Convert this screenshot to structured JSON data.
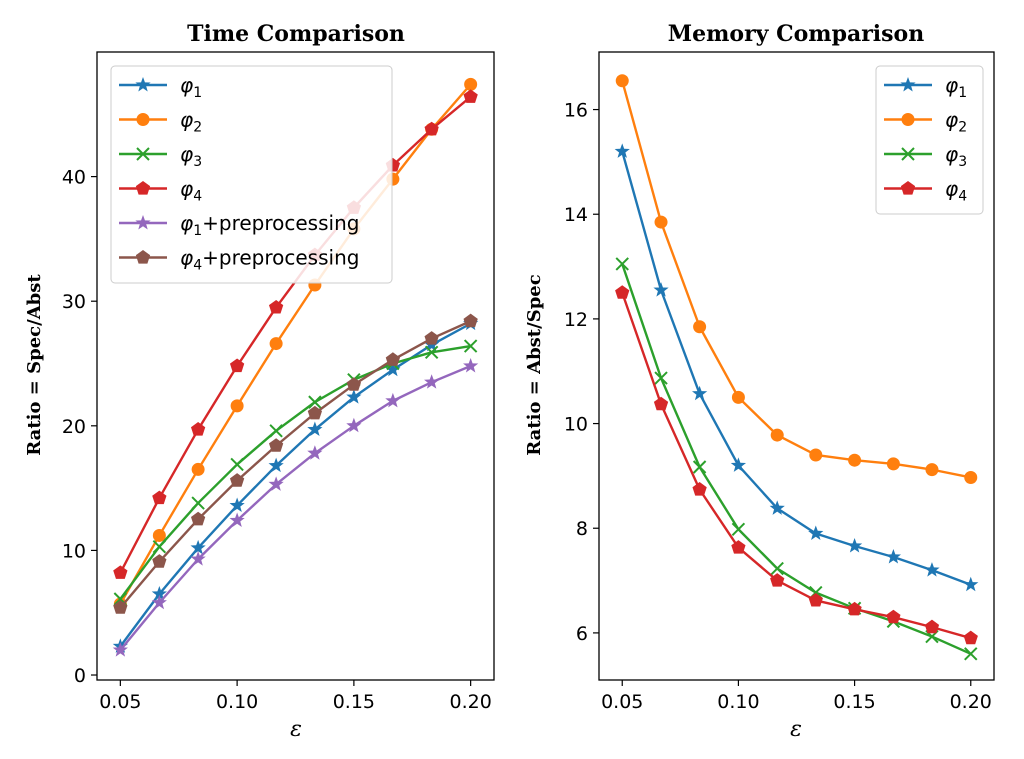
{
  "chart_data": [
    {
      "type": "line",
      "title": "Time Comparison",
      "xlabel": "ε",
      "ylabel": "Ratio = Spec/Abst",
      "xlim": [
        0.04,
        0.21
      ],
      "ylim": [
        -0.4,
        50
      ],
      "xticks": [
        "0.05",
        "0.10",
        "0.15",
        "0.20"
      ],
      "yticks": [
        "0",
        "10",
        "20",
        "30",
        "40"
      ],
      "legend_position": "upper-left",
      "x": [
        0.05,
        0.0667,
        0.0833,
        0.1,
        0.1167,
        0.1333,
        0.15,
        0.1667,
        0.1833,
        0.2
      ],
      "series": [
        {
          "name": "φ1",
          "sym": "φ",
          "sub": "1",
          "suffix": "",
          "color": "#1f77b4",
          "marker": "star",
          "values": [
            2.3,
            6.5,
            10.2,
            13.6,
            16.8,
            19.7,
            22.3,
            24.5,
            26.5,
            28.2
          ]
        },
        {
          "name": "φ2",
          "sym": "φ",
          "sub": "2",
          "suffix": "",
          "color": "#ff7f0e",
          "marker": "circle",
          "values": [
            5.7,
            11.2,
            16.5,
            21.6,
            26.6,
            31.3,
            35.8,
            39.8,
            43.8,
            47.4
          ]
        },
        {
          "name": "φ3",
          "sym": "φ",
          "sub": "3",
          "suffix": "",
          "color": "#2ca02c",
          "marker": "x",
          "values": [
            6.1,
            10.3,
            13.8,
            16.9,
            19.6,
            21.9,
            23.7,
            25.0,
            25.9,
            26.4
          ]
        },
        {
          "name": "φ4",
          "sym": "φ",
          "sub": "4",
          "suffix": "",
          "color": "#d62728",
          "marker": "pentagon",
          "values": [
            8.2,
            14.2,
            19.7,
            24.8,
            29.5,
            33.7,
            37.5,
            40.9,
            43.8,
            46.4
          ]
        },
        {
          "name": "φ1+preprocessing",
          "sym": "φ",
          "sub": "1",
          "suffix": "+preprocessing",
          "color": "#9467bd",
          "marker": "star",
          "values": [
            2.0,
            5.8,
            9.3,
            12.4,
            15.3,
            17.8,
            20.0,
            22.0,
            23.5,
            24.8
          ]
        },
        {
          "name": "φ4+preprocessing",
          "sym": "φ",
          "sub": "4",
          "suffix": "+preprocessing",
          "color": "#8c564b",
          "marker": "pentagon",
          "values": [
            5.4,
            9.1,
            12.5,
            15.6,
            18.4,
            21.0,
            23.3,
            25.3,
            27.0,
            28.4
          ]
        }
      ]
    },
    {
      "type": "line",
      "title": "Memory Comparison",
      "xlabel": "ε",
      "ylabel": "Ratio = Abst/Spec",
      "xlim": [
        0.04,
        0.21
      ],
      "ylim": [
        5.1,
        17.1
      ],
      "xticks": [
        "0.05",
        "0.10",
        "0.15",
        "0.20"
      ],
      "yticks": [
        "6",
        "8",
        "10",
        "12",
        "14",
        "16"
      ],
      "legend_position": "upper-right",
      "x": [
        0.05,
        0.0667,
        0.0833,
        0.1,
        0.1167,
        0.1333,
        0.15,
        0.1667,
        0.1833,
        0.2
      ],
      "series": [
        {
          "name": "φ1",
          "sym": "φ",
          "sub": "1",
          "suffix": "",
          "color": "#1f77b4",
          "marker": "star",
          "values": [
            15.2,
            12.55,
            10.57,
            9.2,
            8.38,
            7.9,
            7.66,
            7.45,
            7.2,
            6.92
          ]
        },
        {
          "name": "φ2",
          "sym": "φ",
          "sub": "2",
          "suffix": "",
          "color": "#ff7f0e",
          "marker": "circle",
          "values": [
            16.55,
            13.85,
            11.85,
            10.5,
            9.78,
            9.4,
            9.3,
            9.23,
            9.12,
            8.97
          ]
        },
        {
          "name": "φ3",
          "sym": "φ",
          "sub": "3",
          "suffix": "",
          "color": "#2ca02c",
          "marker": "x",
          "values": [
            13.05,
            10.87,
            9.17,
            7.98,
            7.23,
            6.77,
            6.47,
            6.22,
            5.93,
            5.6
          ]
        },
        {
          "name": "φ4",
          "sym": "φ",
          "sub": "4",
          "suffix": "",
          "color": "#d62728",
          "marker": "pentagon",
          "values": [
            12.5,
            10.37,
            8.74,
            7.63,
            7.0,
            6.62,
            6.45,
            6.3,
            6.11,
            5.9
          ]
        }
      ]
    }
  ]
}
